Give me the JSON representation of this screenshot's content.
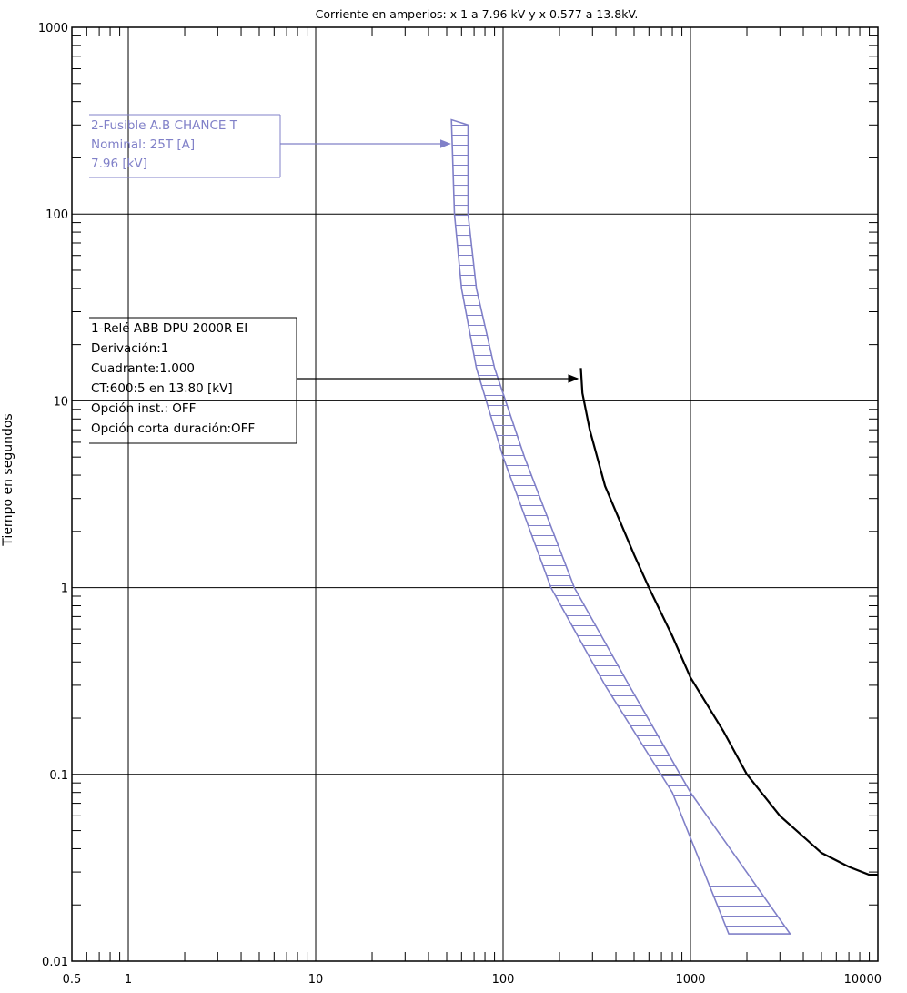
{
  "chart_data": {
    "type": "line",
    "title": "Corriente en amperios: x 1 a 7.96 kV y x 0.577 a 13.8kV.",
    "xlabel": "",
    "ylabel": "Tiempo en segundos",
    "x_scale": "log",
    "y_scale": "log",
    "xlim": [
      0.5,
      10000
    ],
    "ylim": [
      0.01,
      1000
    ],
    "x_tick_labels": [
      "0.5",
      "1",
      "10",
      "100",
      "1000",
      "10000"
    ],
    "y_tick_labels": [
      "0.01",
      "0.1",
      "1",
      "10",
      "100",
      "1000"
    ],
    "grid": "decades",
    "series": [
      {
        "name": "2-Fusible A.B CHANCE T",
        "kind": "band",
        "color": "#8080c8",
        "lower": [
          [
            53,
            320
          ],
          [
            55,
            100
          ],
          [
            60,
            40
          ],
          [
            72,
            15
          ],
          [
            100,
            5
          ],
          [
            180,
            1
          ],
          [
            350,
            0.3
          ],
          [
            800,
            0.08
          ],
          [
            1600,
            0.014
          ]
        ],
        "upper": [
          [
            65,
            300
          ],
          [
            65,
            100
          ],
          [
            72,
            40
          ],
          [
            90,
            15
          ],
          [
            130,
            5
          ],
          [
            240,
            1
          ],
          [
            470,
            0.3
          ],
          [
            1000,
            0.08
          ],
          [
            3400,
            0.014
          ]
        ]
      },
      {
        "name": "1-Relé  ABB DPU 2000R EI",
        "kind": "line",
        "color": "#000000",
        "points": [
          [
            260,
            15
          ],
          [
            265,
            11
          ],
          [
            290,
            7
          ],
          [
            350,
            3.5
          ],
          [
            500,
            1.5
          ],
          [
            600,
            1
          ],
          [
            800,
            0.55
          ],
          [
            1000,
            0.33
          ],
          [
            1500,
            0.17
          ],
          [
            2000,
            0.1
          ],
          [
            3000,
            0.06
          ],
          [
            5000,
            0.038
          ],
          [
            7000,
            0.032
          ],
          [
            9000,
            0.029
          ],
          [
            10000,
            0.029
          ]
        ]
      }
    ],
    "annotations": [
      {
        "id": "fuse",
        "color": "#8080c8",
        "lines": [
          "2-Fusible A.B CHANCE T",
          "Nominal: 25T [A]",
          "7.96 [kV]"
        ],
        "arrow_to": [
          52,
          260
        ]
      },
      {
        "id": "relay",
        "color": "#000000",
        "lines": [
          "1-Relé  ABB DPU 2000R EI",
          "Derivación:1",
          "Cuadrante:1.000",
          "CT:600:5 en 13.80 [kV]",
          "Opción inst.: OFF",
          "Opción corta duración:OFF"
        ],
        "arrow_to": [
          250,
          13
        ]
      }
    ]
  }
}
